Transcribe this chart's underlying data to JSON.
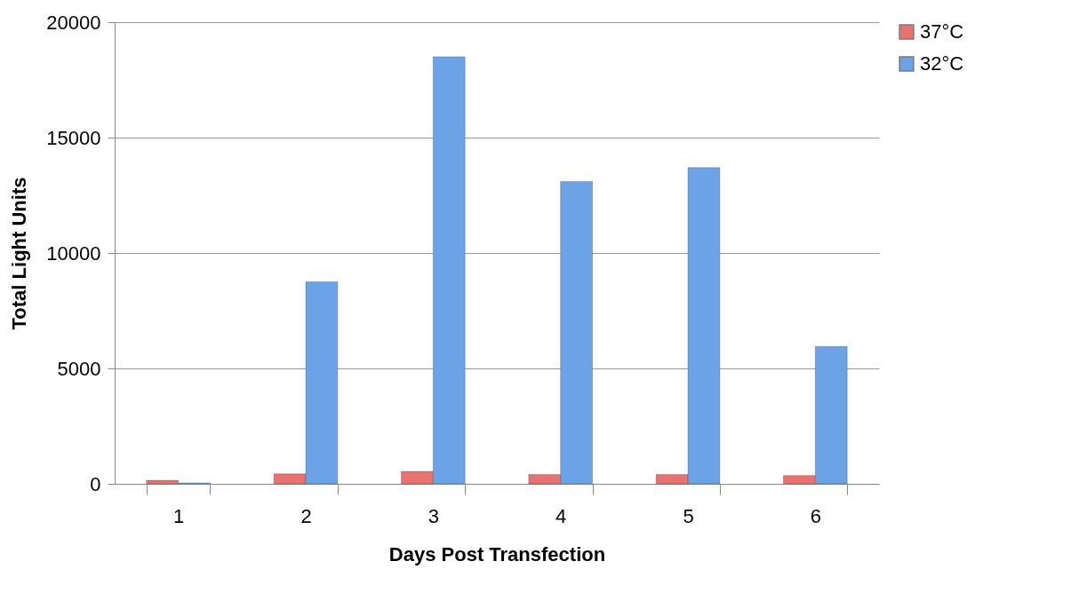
{
  "chart_data": {
    "type": "bar",
    "xlabel": "Days Post Transfection",
    "ylabel": "Total Light Units",
    "categories": [
      "1",
      "2",
      "3",
      "4",
      "5",
      "6"
    ],
    "series": [
      {
        "name": "37°C",
        "color": "#e9716e",
        "values": [
          150,
          430,
          540,
          400,
          400,
          360
        ]
      },
      {
        "name": "32°C",
        "color": "#6ba3e6",
        "values": [
          40,
          8750,
          18500,
          13100,
          13700,
          5950
        ]
      }
    ],
    "ylim": [
      0,
      20000
    ],
    "yticks": [
      0,
      5000,
      10000,
      15000,
      20000
    ],
    "grid": "y",
    "legend": "right"
  }
}
